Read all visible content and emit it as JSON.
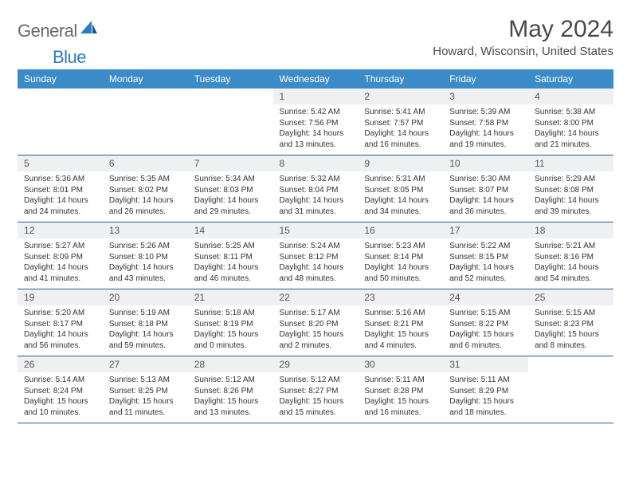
{
  "logo": {
    "general": "General",
    "blue": "Blue"
  },
  "title": {
    "month": "May 2024",
    "location": "Howard, Wisconsin, United States"
  },
  "colors": {
    "header_bg": "#3b8bc9",
    "header_text": "#ffffff",
    "daynum_bg": "#eef0f2",
    "rule": "#2d5a8a",
    "logo_gray": "#6a6a6a",
    "logo_blue": "#2b7cc0"
  },
  "weekdays": [
    "Sunday",
    "Monday",
    "Tuesday",
    "Wednesday",
    "Thursday",
    "Friday",
    "Saturday"
  ],
  "weeks": [
    {
      "nums": [
        "",
        "",
        "",
        "1",
        "2",
        "3",
        "4"
      ],
      "cells": [
        null,
        null,
        null,
        {
          "sunrise": "5:42 AM",
          "sunset": "7:56 PM",
          "daylight": "14 hours and 13 minutes."
        },
        {
          "sunrise": "5:41 AM",
          "sunset": "7:57 PM",
          "daylight": "14 hours and 16 minutes."
        },
        {
          "sunrise": "5:39 AM",
          "sunset": "7:58 PM",
          "daylight": "14 hours and 19 minutes."
        },
        {
          "sunrise": "5:38 AM",
          "sunset": "8:00 PM",
          "daylight": "14 hours and 21 minutes."
        }
      ]
    },
    {
      "nums": [
        "5",
        "6",
        "7",
        "8",
        "9",
        "10",
        "11"
      ],
      "cells": [
        {
          "sunrise": "5:36 AM",
          "sunset": "8:01 PM",
          "daylight": "14 hours and 24 minutes."
        },
        {
          "sunrise": "5:35 AM",
          "sunset": "8:02 PM",
          "daylight": "14 hours and 26 minutes."
        },
        {
          "sunrise": "5:34 AM",
          "sunset": "8:03 PM",
          "daylight": "14 hours and 29 minutes."
        },
        {
          "sunrise": "5:32 AM",
          "sunset": "8:04 PM",
          "daylight": "14 hours and 31 minutes."
        },
        {
          "sunrise": "5:31 AM",
          "sunset": "8:05 PM",
          "daylight": "14 hours and 34 minutes."
        },
        {
          "sunrise": "5:30 AM",
          "sunset": "8:07 PM",
          "daylight": "14 hours and 36 minutes."
        },
        {
          "sunrise": "5:29 AM",
          "sunset": "8:08 PM",
          "daylight": "14 hours and 39 minutes."
        }
      ]
    },
    {
      "nums": [
        "12",
        "13",
        "14",
        "15",
        "16",
        "17",
        "18"
      ],
      "cells": [
        {
          "sunrise": "5:27 AM",
          "sunset": "8:09 PM",
          "daylight": "14 hours and 41 minutes."
        },
        {
          "sunrise": "5:26 AM",
          "sunset": "8:10 PM",
          "daylight": "14 hours and 43 minutes."
        },
        {
          "sunrise": "5:25 AM",
          "sunset": "8:11 PM",
          "daylight": "14 hours and 46 minutes."
        },
        {
          "sunrise": "5:24 AM",
          "sunset": "8:12 PM",
          "daylight": "14 hours and 48 minutes."
        },
        {
          "sunrise": "5:23 AM",
          "sunset": "8:14 PM",
          "daylight": "14 hours and 50 minutes."
        },
        {
          "sunrise": "5:22 AM",
          "sunset": "8:15 PM",
          "daylight": "14 hours and 52 minutes."
        },
        {
          "sunrise": "5:21 AM",
          "sunset": "8:16 PM",
          "daylight": "14 hours and 54 minutes."
        }
      ]
    },
    {
      "nums": [
        "19",
        "20",
        "21",
        "22",
        "23",
        "24",
        "25"
      ],
      "cells": [
        {
          "sunrise": "5:20 AM",
          "sunset": "8:17 PM",
          "daylight": "14 hours and 56 minutes."
        },
        {
          "sunrise": "5:19 AM",
          "sunset": "8:18 PM",
          "daylight": "14 hours and 59 minutes."
        },
        {
          "sunrise": "5:18 AM",
          "sunset": "8:19 PM",
          "daylight": "15 hours and 0 minutes."
        },
        {
          "sunrise": "5:17 AM",
          "sunset": "8:20 PM",
          "daylight": "15 hours and 2 minutes."
        },
        {
          "sunrise": "5:16 AM",
          "sunset": "8:21 PM",
          "daylight": "15 hours and 4 minutes."
        },
        {
          "sunrise": "5:15 AM",
          "sunset": "8:22 PM",
          "daylight": "15 hours and 6 minutes."
        },
        {
          "sunrise": "5:15 AM",
          "sunset": "8:23 PM",
          "daylight": "15 hours and 8 minutes."
        }
      ]
    },
    {
      "nums": [
        "26",
        "27",
        "28",
        "29",
        "30",
        "31",
        ""
      ],
      "cells": [
        {
          "sunrise": "5:14 AM",
          "sunset": "8:24 PM",
          "daylight": "15 hours and 10 minutes."
        },
        {
          "sunrise": "5:13 AM",
          "sunset": "8:25 PM",
          "daylight": "15 hours and 11 minutes."
        },
        {
          "sunrise": "5:12 AM",
          "sunset": "8:26 PM",
          "daylight": "15 hours and 13 minutes."
        },
        {
          "sunrise": "5:12 AM",
          "sunset": "8:27 PM",
          "daylight": "15 hours and 15 minutes."
        },
        {
          "sunrise": "5:11 AM",
          "sunset": "8:28 PM",
          "daylight": "15 hours and 16 minutes."
        },
        {
          "sunrise": "5:11 AM",
          "sunset": "8:29 PM",
          "daylight": "15 hours and 18 minutes."
        },
        null
      ]
    }
  ],
  "labels": {
    "sunrise": "Sunrise:",
    "sunset": "Sunset:",
    "daylight": "Daylight:"
  }
}
